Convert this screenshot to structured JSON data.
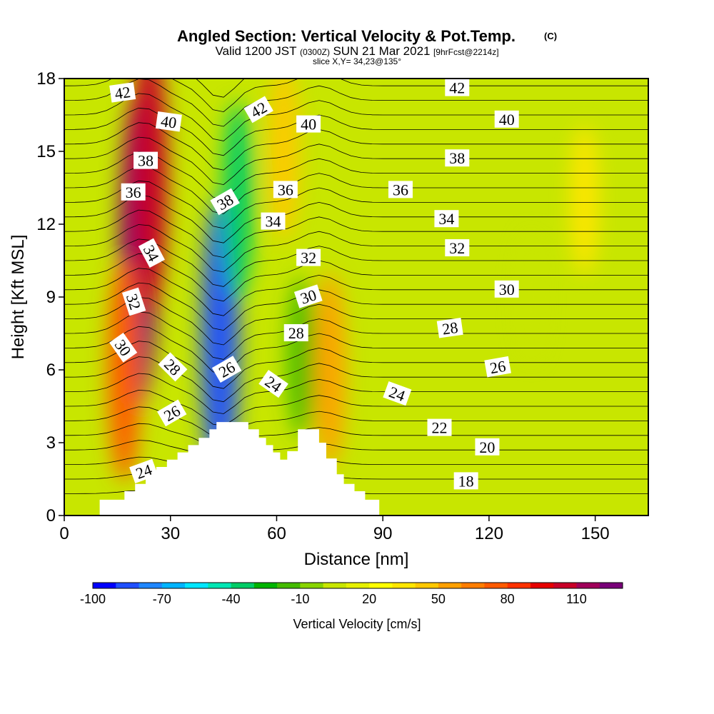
{
  "header": {
    "title": "Angled Section: Vertical Velocity & Pot.Temp.",
    "title_mark": "(C)",
    "valid_prefix": "Valid 1200 JST",
    "valid_utc": "(0300Z)",
    "valid_date": "SUN 21 Mar 2021",
    "forecast": "[9hrFcst@2214z]",
    "slice": "slice X,Y= 34,23@135°"
  },
  "chart_data": {
    "type": "heatmap",
    "xlabel": "Distance [nm]",
    "ylabel": "Height [Kft MSL]",
    "xlim": [
      0,
      165
    ],
    "ylim": [
      0,
      18
    ],
    "x_ticks": [
      "0",
      "30",
      "60",
      "90",
      "120",
      "150"
    ],
    "x_tick_values": [
      0,
      30,
      60,
      90,
      120,
      150
    ],
    "y_ticks": [
      "0",
      "3",
      "6",
      "9",
      "12",
      "15",
      "18"
    ],
    "y_tick_values": [
      0,
      3,
      6,
      9,
      12,
      15,
      18
    ],
    "grid": false,
    "colorbar": {
      "label": "Vertical Velocity [cm/s]",
      "tick_labels": [
        "-100",
        "-70",
        "-40",
        "-10",
        "20",
        "50",
        "80",
        "110"
      ],
      "tick_values": [
        -100,
        -70,
        -40,
        -10,
        20,
        50,
        80,
        110
      ],
      "levels": [
        -110,
        -100,
        -90,
        -80,
        -70,
        -60,
        -50,
        -40,
        -30,
        -20,
        -10,
        0,
        10,
        20,
        30,
        40,
        50,
        60,
        70,
        80,
        90,
        100,
        110,
        120
      ],
      "colors": [
        "#0000ff",
        "#1f4fff",
        "#1e86ff",
        "#00b4ff",
        "#00e6ff",
        "#00e6b4",
        "#00cc66",
        "#00b400",
        "#44bb00",
        "#88d400",
        "#c8e600",
        "#e6f000",
        "#ffff00",
        "#ffe600",
        "#ffc800",
        "#ffa000",
        "#ff7d00",
        "#ff5a00",
        "#ff3200",
        "#e60000",
        "#c80028",
        "#a0005a",
        "#780078"
      ]
    },
    "velocity_features": [
      {
        "center_x": 21,
        "center_y": 11.0,
        "value": 115
      },
      {
        "center_x": 24,
        "center_y": 14.0,
        "value": 90
      },
      {
        "center_x": 17,
        "center_y": 6.0,
        "value": 60
      },
      {
        "center_x": 44,
        "center_y": 7.0,
        "value": -100
      },
      {
        "center_x": 49,
        "center_y": 13.0,
        "value": -45
      },
      {
        "center_x": 67,
        "center_y": 6.5,
        "value": -25
      },
      {
        "center_x": 75,
        "center_y": 6.0,
        "value": 45
      },
      {
        "center_x": 62,
        "center_y": 15.0,
        "value": 35
      },
      {
        "center_x": 132,
        "center_y": 9.0,
        "value": -8
      },
      {
        "center_x": 147,
        "center_y": 13.0,
        "value": 20
      }
    ],
    "terrain": [
      [
        0,
        0
      ],
      [
        10,
        0
      ],
      [
        10,
        0.65
      ],
      [
        17,
        0.65
      ],
      [
        17,
        1.0
      ],
      [
        20,
        1.0
      ],
      [
        20,
        1.3
      ],
      [
        23,
        1.3
      ],
      [
        23,
        1.65
      ],
      [
        26,
        1.65
      ],
      [
        26,
        2.0
      ],
      [
        29,
        2.0
      ],
      [
        29,
        2.3
      ],
      [
        32,
        2.3
      ],
      [
        32,
        2.6
      ],
      [
        35,
        2.6
      ],
      [
        35,
        2.9
      ],
      [
        38,
        2.9
      ],
      [
        38,
        3.2
      ],
      [
        41,
        3.2
      ],
      [
        41,
        3.55
      ],
      [
        43,
        3.55
      ],
      [
        43,
        3.85
      ],
      [
        52,
        3.85
      ],
      [
        52,
        3.55
      ],
      [
        55,
        3.55
      ],
      [
        55,
        3.2
      ],
      [
        57,
        3.2
      ],
      [
        57,
        2.9
      ],
      [
        59,
        2.9
      ],
      [
        59,
        2.6
      ],
      [
        61,
        2.6
      ],
      [
        61,
        2.3
      ],
      [
        63,
        2.3
      ],
      [
        63,
        2.65
      ],
      [
        66,
        2.65
      ],
      [
        66,
        3.55
      ],
      [
        72,
        3.55
      ],
      [
        72,
        3.0
      ],
      [
        74,
        3.0
      ],
      [
        74,
        2.35
      ],
      [
        77,
        2.35
      ],
      [
        77,
        1.7
      ],
      [
        79,
        1.7
      ],
      [
        79,
        1.3
      ],
      [
        82,
        1.3
      ],
      [
        82,
        1.0
      ],
      [
        85,
        1.0
      ],
      [
        85,
        0.65
      ],
      [
        89,
        0.65
      ],
      [
        89,
        0
      ],
      [
        0,
        0
      ]
    ],
    "theta_labels": [
      {
        "text": "42",
        "x": 16.5,
        "y": 17.4,
        "angle": -8
      },
      {
        "text": "40",
        "x": 29.5,
        "y": 16.2,
        "angle": 8
      },
      {
        "text": "38",
        "x": 23,
        "y": 14.6,
        "angle": 0
      },
      {
        "text": "36",
        "x": 19.5,
        "y": 13.3,
        "angle": 0
      },
      {
        "text": "34",
        "x": 24.5,
        "y": 10.8,
        "angle": 62
      },
      {
        "text": "32",
        "x": 19.5,
        "y": 8.8,
        "angle": 72
      },
      {
        "text": "30",
        "x": 16.5,
        "y": 6.9,
        "angle": 55
      },
      {
        "text": "28",
        "x": 30.5,
        "y": 6.1,
        "angle": 45
      },
      {
        "text": "26",
        "x": 30.5,
        "y": 4.2,
        "angle": -30
      },
      {
        "text": "24",
        "x": 22.5,
        "y": 1.8,
        "angle": -20
      },
      {
        "text": "42",
        "x": 55,
        "y": 16.7,
        "angle": -30
      },
      {
        "text": "40",
        "x": 69,
        "y": 16.1,
        "angle": 0
      },
      {
        "text": "38",
        "x": 45.5,
        "y": 12.9,
        "angle": -30
      },
      {
        "text": "36",
        "x": 62.5,
        "y": 13.4,
        "angle": 0
      },
      {
        "text": "34",
        "x": 59,
        "y": 12.1,
        "angle": 0
      },
      {
        "text": "32",
        "x": 69,
        "y": 10.6,
        "angle": 0
      },
      {
        "text": "30",
        "x": 69,
        "y": 9.0,
        "angle": -18
      },
      {
        "text": "28",
        "x": 65.5,
        "y": 7.5,
        "angle": 0
      },
      {
        "text": "26",
        "x": 46,
        "y": 6.0,
        "angle": -30
      },
      {
        "text": "24",
        "x": 59,
        "y": 5.4,
        "angle": 35
      },
      {
        "text": "42",
        "x": 111,
        "y": 17.6,
        "angle": 0
      },
      {
        "text": "40",
        "x": 125,
        "y": 16.3,
        "angle": 0
      },
      {
        "text": "38",
        "x": 111,
        "y": 14.7,
        "angle": 0
      },
      {
        "text": "36",
        "x": 95,
        "y": 13.4,
        "angle": 0
      },
      {
        "text": "34",
        "x": 108,
        "y": 12.2,
        "angle": 0
      },
      {
        "text": "32",
        "x": 111,
        "y": 11.0,
        "angle": 0
      },
      {
        "text": "30",
        "x": 125,
        "y": 9.3,
        "angle": 0
      },
      {
        "text": "28",
        "x": 109,
        "y": 7.7,
        "angle": -8
      },
      {
        "text": "26",
        "x": 122.5,
        "y": 6.1,
        "angle": -10
      },
      {
        "text": "24",
        "x": 94,
        "y": 5.0,
        "angle": 20
      },
      {
        "text": "22",
        "x": 106,
        "y": 3.6,
        "angle": 0
      },
      {
        "text": "20",
        "x": 119.5,
        "y": 2.8,
        "angle": 0
      },
      {
        "text": "18",
        "x": 113.5,
        "y": 1.4,
        "angle": 0
      }
    ]
  }
}
